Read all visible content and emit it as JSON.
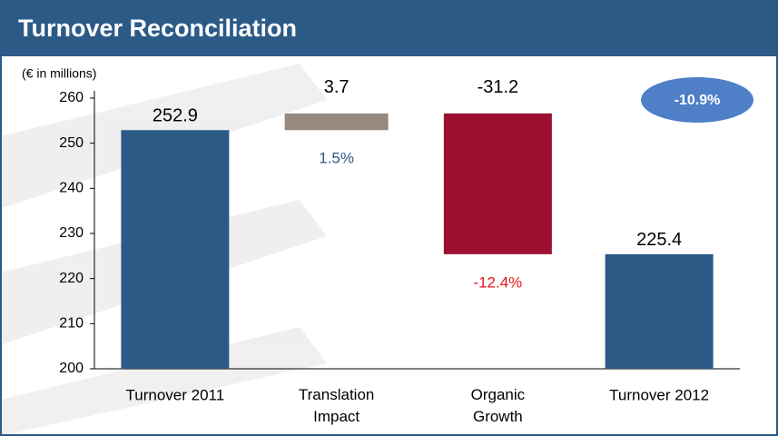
{
  "chart_data": {
    "type": "waterfall",
    "title": "Turnover Reconciliation",
    "subtitle": "(€ in millions)",
    "categories": [
      "Turnover 2011",
      "Translation Impact",
      "Organic Growth",
      "Turnover 2012"
    ],
    "values": [
      252.9,
      3.7,
      -31.2,
      225.4
    ],
    "totals": [
      true,
      false,
      false,
      true
    ],
    "colors": [
      "#2b5a87",
      "#968a80",
      "#9b1030",
      "#2b5a87"
    ],
    "ylim": [
      200,
      260
    ],
    "yticks": [
      200,
      210,
      220,
      230,
      240,
      250,
      260
    ],
    "grid": false,
    "annotations": [
      {
        "category": "Translation Impact",
        "text": "1.5%",
        "color": "#2b5a87"
      },
      {
        "category": "Organic Growth",
        "text": "-12.4%",
        "color": "#e8161c"
      }
    ],
    "badge": {
      "text": "-10.9%",
      "color": "#4f7fc6"
    }
  }
}
